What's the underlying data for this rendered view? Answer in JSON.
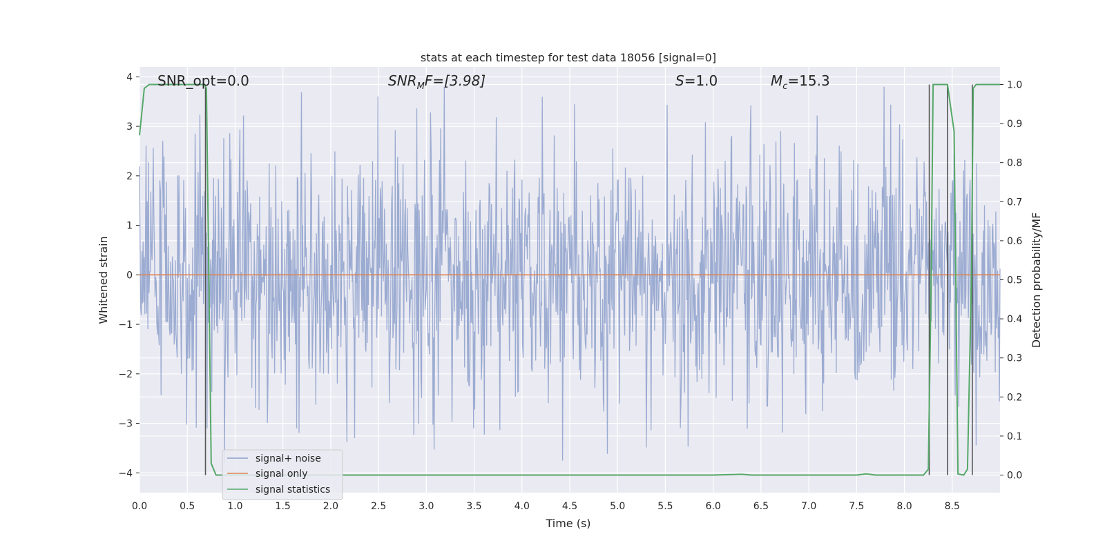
{
  "chart_data": {
    "type": "line",
    "title": "stats at each timestep for test data 18056 [signal=0]",
    "xlabel": "Time (s)",
    "ylabel_left": "Whitened strain",
    "ylabel_right": "Detection probability/MF",
    "xlim": [
      0.0,
      9.0
    ],
    "ylim_left": [
      -4.4,
      4.2
    ],
    "ylim_right": [
      -0.045,
      1.045
    ],
    "grid": true,
    "legend_placement": "lower-left",
    "x_ticks": [
      "0.0",
      "0.5",
      "1.0",
      "1.5",
      "2.0",
      "2.5",
      "3.0",
      "3.5",
      "4.0",
      "4.5",
      "5.0",
      "5.5",
      "6.0",
      "6.5",
      "7.0",
      "7.5",
      "8.0",
      "8.5"
    ],
    "y_ticks_left": [
      "4",
      "3",
      "2",
      "1",
      "0",
      "−1",
      "−2",
      "−3",
      "−4"
    ],
    "y_ticks_right": [
      "1.0",
      "0.9",
      "0.8",
      "0.7",
      "0.6",
      "0.5",
      "0.4",
      "0.3",
      "0.2",
      "0.1",
      "0.0"
    ],
    "annotations": {
      "snr_opt": "SNR_opt=0.0",
      "snr_mf_main": "SNR",
      "snr_mf_sub": "M",
      "snr_mf_rest": "F=[3.98]",
      "s_main": "S",
      "s_rest": "=1.0",
      "mc_main": "M",
      "mc_sub": "c",
      "mc_rest": "=15.3"
    },
    "series": [
      {
        "name": "signal+ noise",
        "axis": "left",
        "color": "#8da0cb",
        "noise_envelope": {
          "typical_amplitude": 1.3,
          "peak_high": 3.8,
          "peak_low": -3.8,
          "samples_per_second": 160
        }
      },
      {
        "name": "signal only",
        "axis": "left",
        "color": "#dd8452",
        "x": [
          0.0,
          9.0
        ],
        "y": [
          0.0,
          0.0
        ]
      },
      {
        "name": "signal statistics",
        "axis": "right",
        "color": "#55a868",
        "x": [
          0.0,
          0.05,
          0.1,
          0.2,
          0.3,
          0.4,
          0.5,
          0.6,
          0.68,
          0.7,
          0.75,
          0.8,
          1.0,
          2.0,
          3.0,
          4.0,
          5.0,
          6.0,
          6.3,
          6.4,
          7.0,
          7.5,
          7.6,
          7.7,
          8.0,
          8.2,
          8.25,
          8.28,
          8.3,
          8.35,
          8.4,
          8.45,
          8.52,
          8.56,
          8.62,
          8.66,
          8.7,
          8.72,
          8.75,
          9.0
        ],
        "y": [
          0.87,
          0.99,
          1.0,
          1.0,
          1.0,
          1.0,
          1.0,
          1.0,
          1.0,
          0.99,
          0.03,
          0.0,
          0.0,
          0.0,
          0.0,
          0.0,
          0.0,
          0.0,
          0.002,
          0.0,
          0.0,
          0.0,
          0.003,
          0.0,
          0.0,
          0.0,
          0.015,
          0.5,
          1.0,
          1.0,
          1.0,
          1.0,
          0.88,
          0.003,
          0.0,
          0.015,
          0.5,
          0.99,
          1.0,
          1.0
        ]
      }
    ],
    "marker_lines": {
      "color": "#555555",
      "items": [
        {
          "x": 0.69,
          "y_from": 0.0,
          "y_to": 1.0
        },
        {
          "x": 8.26,
          "y_from": 0.0,
          "y_to": 1.0
        },
        {
          "x": 8.45,
          "y_from": 0.0,
          "y_to": 1.0
        },
        {
          "x": 8.71,
          "y_from": 0.0,
          "y_to": 1.0
        }
      ]
    }
  }
}
